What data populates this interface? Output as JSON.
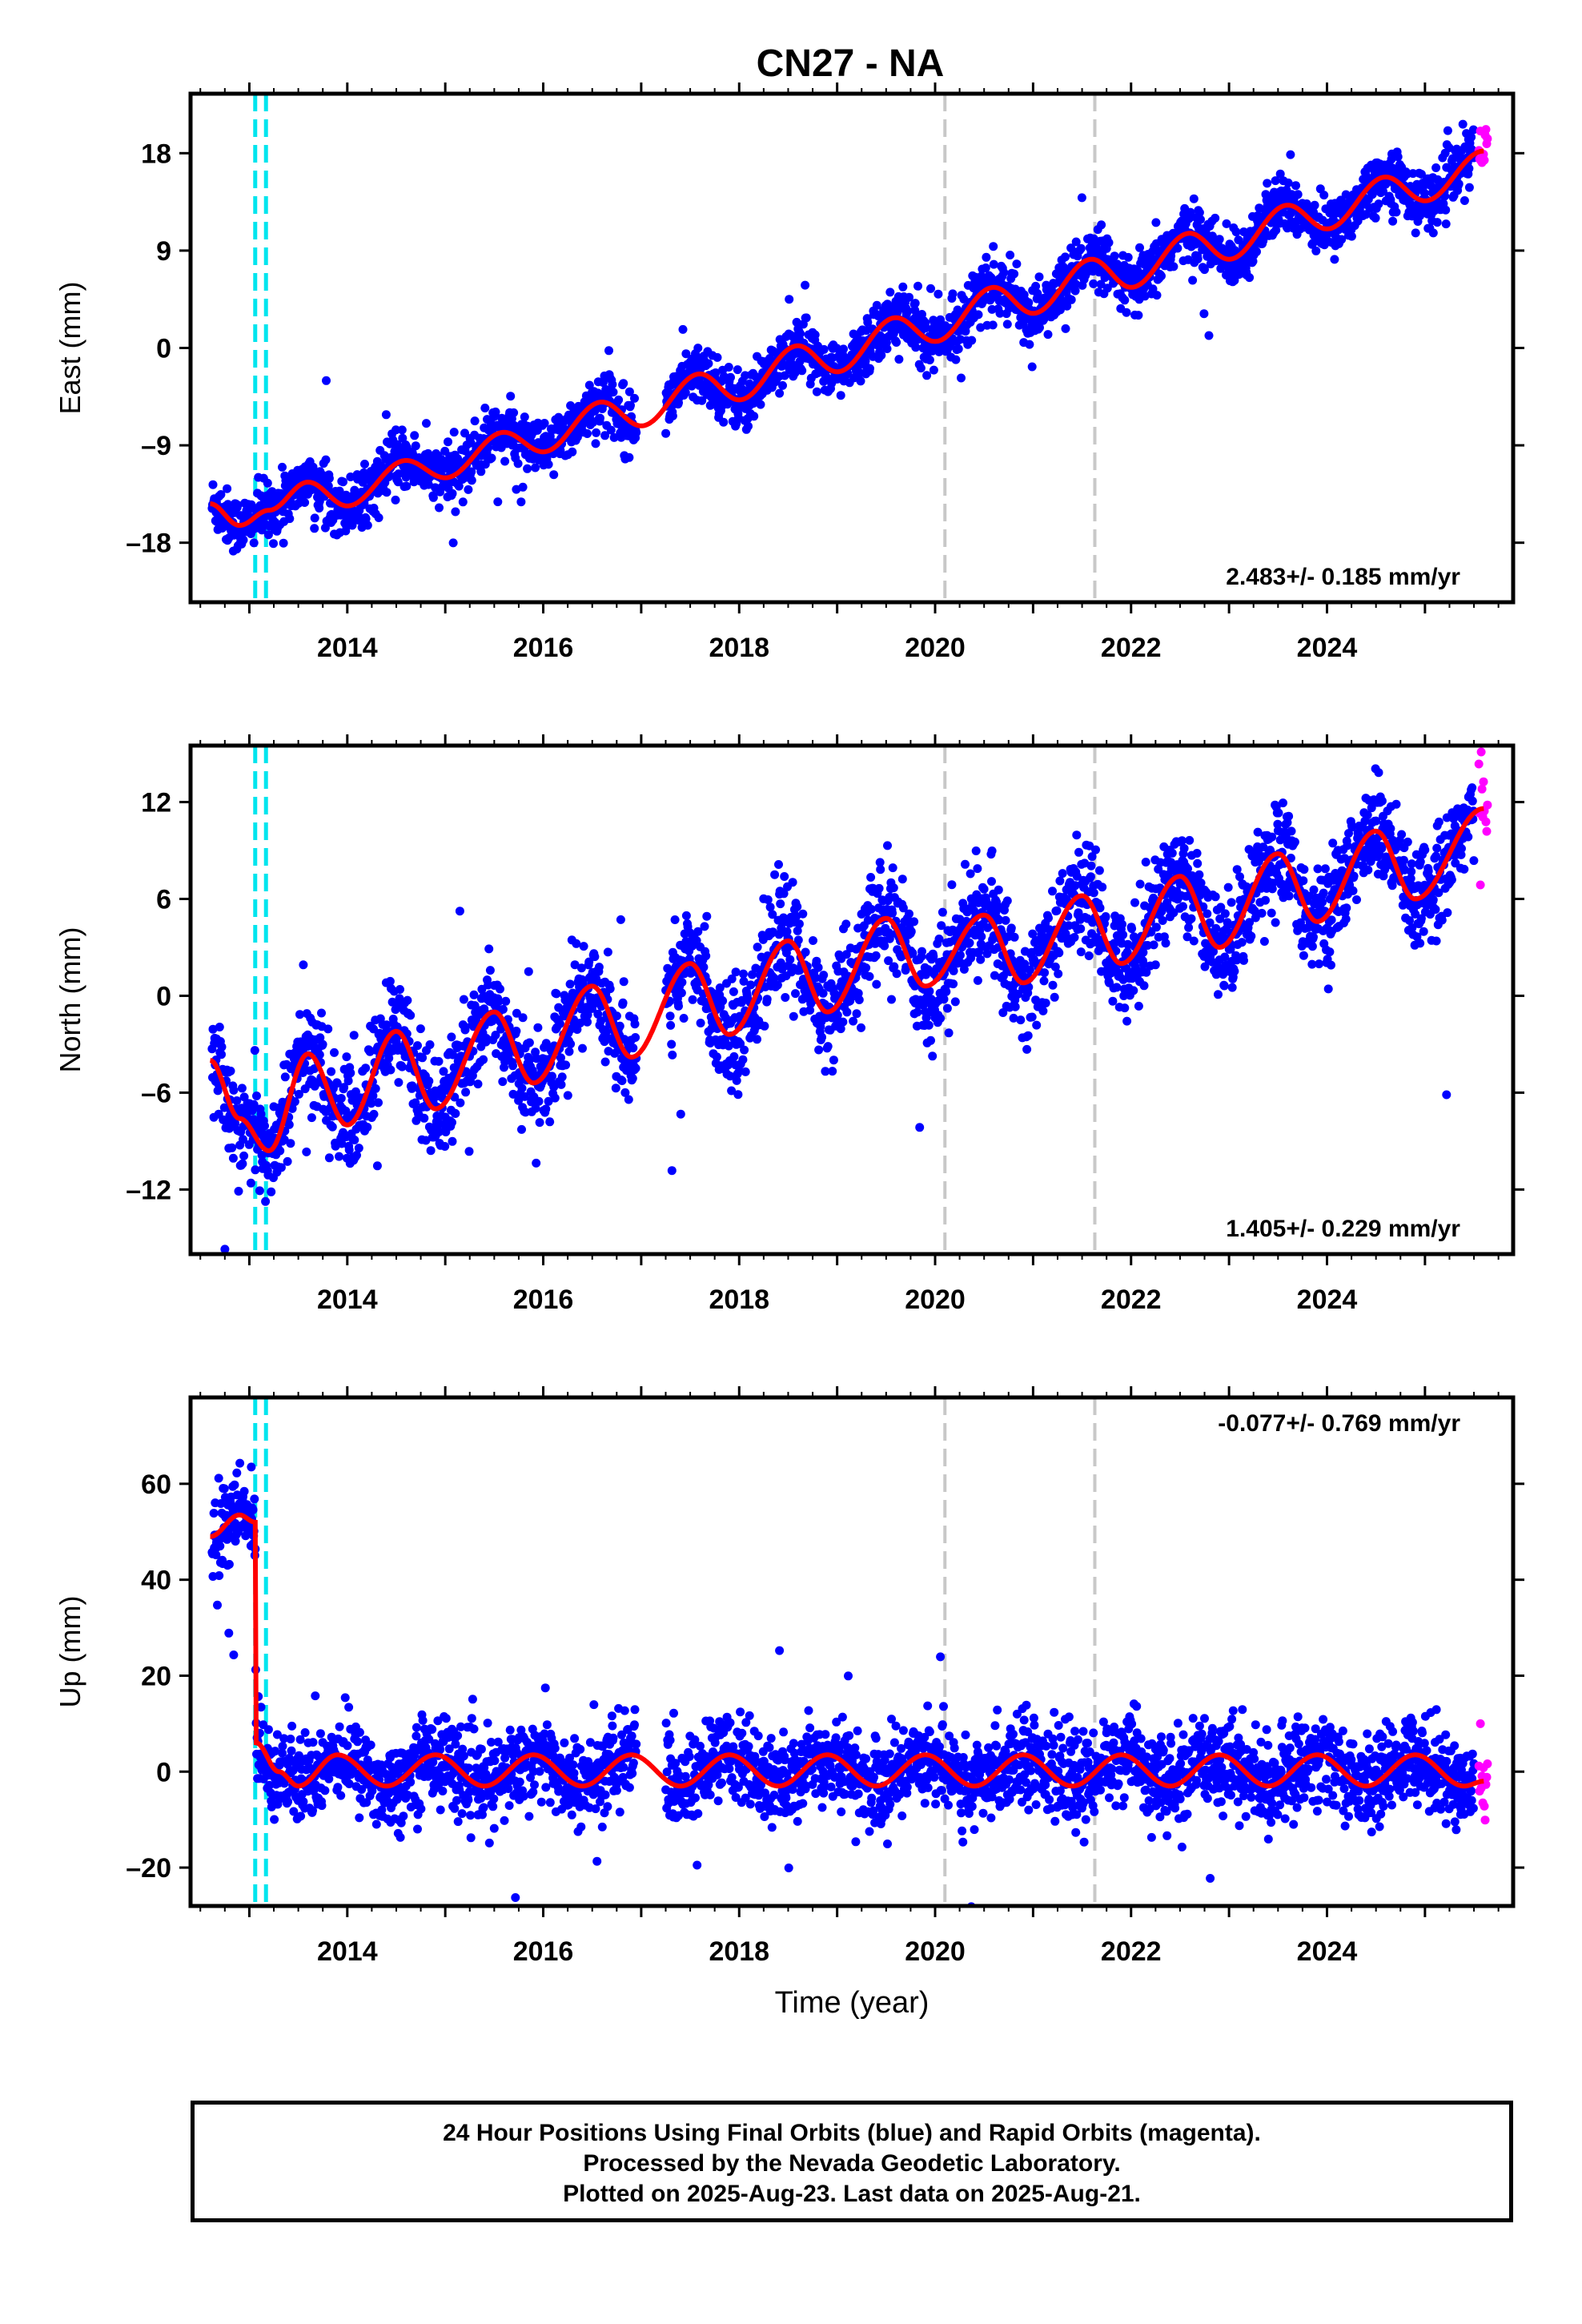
{
  "title": "CN27 - NA",
  "colors": {
    "final_orbits": "#0000ff",
    "rapid_orbits": "#ff00ff",
    "model_fit": "#ff0000",
    "antenna_change": "#00e5ee",
    "event_marker": "#c8c8c8",
    "axes": "#000000"
  },
  "chart_data": [
    {
      "type": "scatter",
      "name": "east",
      "ylabel": "East (mm)",
      "xlabel": "",
      "xlim": [
        2012.4,
        2025.9
      ],
      "ylim": [
        -23.5,
        23.5
      ],
      "yticks": [
        -18,
        -9,
        0,
        9,
        18
      ],
      "xticks": [
        2014,
        2016,
        2018,
        2020,
        2022,
        2024
      ],
      "grid": false,
      "rate": "2.483+/- 0.185 mm/yr",
      "rate_position": "bottom-right",
      "antenna_changes": [
        2013.06,
        2013.17
      ],
      "events": [
        2020.1,
        2021.63
      ],
      "trend_slope": 2.483,
      "seasonal_amplitude": 1.5,
      "scatter": 1.3,
      "offset_at_start": 0,
      "fit": [
        [
          2012.6,
          -14.4
        ],
        [
          2012.9,
          -16.4
        ],
        [
          2013.2,
          -15.0
        ],
        [
          2013.6,
          -12.4
        ],
        [
          2014.0,
          -14.6
        ],
        [
          2014.6,
          -10.4
        ],
        [
          2015.0,
          -12.0
        ],
        [
          2015.6,
          -7.8
        ],
        [
          2016.0,
          -9.6
        ],
        [
          2016.6,
          -5.0
        ],
        [
          2017.0,
          -7.2
        ],
        [
          2017.6,
          -2.4
        ],
        [
          2018.0,
          -4.8
        ],
        [
          2018.6,
          0.2
        ],
        [
          2019.0,
          -2.2
        ],
        [
          2019.6,
          2.8
        ],
        [
          2020.0,
          0.6
        ],
        [
          2020.6,
          5.6
        ],
        [
          2021.0,
          3.2
        ],
        [
          2021.6,
          8.2
        ],
        [
          2022.0,
          5.6
        ],
        [
          2022.6,
          10.6
        ],
        [
          2023.0,
          8.2
        ],
        [
          2023.6,
          13.2
        ],
        [
          2024.0,
          11.0
        ],
        [
          2024.6,
          15.8
        ],
        [
          2025.0,
          13.6
        ],
        [
          2025.6,
          18.2
        ]
      ]
    },
    {
      "type": "scatter",
      "name": "north",
      "ylabel": "North (mm)",
      "xlabel": "",
      "xlim": [
        2012.4,
        2025.9
      ],
      "ylim": [
        -16,
        15.5
      ],
      "yticks": [
        -12,
        -6,
        0,
        6,
        12
      ],
      "xticks": [
        2014,
        2016,
        2018,
        2020,
        2022,
        2024
      ],
      "grid": false,
      "rate": "1.405+/- 0.229 mm/yr",
      "rate_position": "bottom-right",
      "antenna_changes": [
        2013.06,
        2013.17
      ],
      "events": [
        2020.1,
        2021.63
      ],
      "trend_slope": 1.405,
      "seasonal_amplitude": 3.0,
      "scatter": 1.6,
      "offset_at_start": 0,
      "fit": [
        [
          2012.6,
          -4.0
        ],
        [
          2012.9,
          -7.6
        ],
        [
          2013.2,
          -9.6
        ],
        [
          2013.6,
          -3.6
        ],
        [
          2014.0,
          -8.0
        ],
        [
          2014.5,
          -2.2
        ],
        [
          2014.9,
          -7.0
        ],
        [
          2015.5,
          -1.0
        ],
        [
          2015.9,
          -5.4
        ],
        [
          2016.5,
          0.6
        ],
        [
          2016.9,
          -3.8
        ],
        [
          2017.5,
          2.0
        ],
        [
          2017.9,
          -2.4
        ],
        [
          2018.5,
          3.4
        ],
        [
          2018.9,
          -1.0
        ],
        [
          2019.5,
          4.8
        ],
        [
          2019.9,
          0.6
        ],
        [
          2020.5,
          5.0
        ],
        [
          2020.9,
          0.8
        ],
        [
          2021.5,
          6.2
        ],
        [
          2021.9,
          2.0
        ],
        [
          2022.5,
          7.4
        ],
        [
          2022.9,
          3.0
        ],
        [
          2023.5,
          8.8
        ],
        [
          2023.9,
          4.6
        ],
        [
          2024.5,
          10.2
        ],
        [
          2024.9,
          6.0
        ],
        [
          2025.6,
          11.6
        ]
      ]
    },
    {
      "type": "scatter",
      "name": "up",
      "ylabel": "Up (mm)",
      "xlabel": "Time (year)",
      "xlim": [
        2012.4,
        2025.9
      ],
      "ylim": [
        -28,
        78
      ],
      "yticks": [
        -20,
        0,
        20,
        40,
        60
      ],
      "xticks": [
        2014,
        2016,
        2018,
        2020,
        2022,
        2024
      ],
      "grid": false,
      "rate": "-0.077+/- 0.769 mm/yr",
      "rate_position": "top-right",
      "antenna_changes": [
        2013.06,
        2013.17
      ],
      "events": [
        2020.1,
        2021.63
      ],
      "trend_slope": -0.077,
      "seasonal_amplitude": 3.5,
      "scatter": 4.5,
      "offset_at_start": 52,
      "fit": [
        [
          2012.6,
          49.0
        ],
        [
          2012.9,
          53.5
        ],
        [
          2013.06,
          52.0
        ],
        [
          2013.07,
          6.0
        ],
        [
          2013.3,
          0.0
        ],
        [
          2013.5,
          -3.0
        ],
        [
          2013.9,
          3.5
        ],
        [
          2014.4,
          -3.0
        ],
        [
          2014.9,
          3.5
        ],
        [
          2015.4,
          -3.0
        ],
        [
          2015.9,
          3.5
        ],
        [
          2016.4,
          -3.0
        ],
        [
          2016.9,
          3.5
        ],
        [
          2017.4,
          -3.0
        ],
        [
          2017.9,
          3.5
        ],
        [
          2018.4,
          -3.0
        ],
        [
          2018.9,
          3.5
        ],
        [
          2019.4,
          -3.0
        ],
        [
          2019.9,
          3.5
        ],
        [
          2020.4,
          -3.0
        ],
        [
          2020.9,
          3.5
        ],
        [
          2021.4,
          -3.0
        ],
        [
          2021.9,
          3.5
        ],
        [
          2022.4,
          -3.0
        ],
        [
          2022.9,
          3.5
        ],
        [
          2023.4,
          -3.0
        ],
        [
          2023.9,
          3.5
        ],
        [
          2024.4,
          -3.0
        ],
        [
          2024.9,
          3.5
        ],
        [
          2025.4,
          -3.0
        ],
        [
          2025.6,
          -2.0
        ]
      ]
    }
  ],
  "caption": {
    "line1": "24 Hour Positions Using Final Orbits (blue) and Rapid Orbits (magenta).",
    "line2": "Processed by the Nevada Geodetic Laboratory.",
    "line3": "Plotted on 2025-Aug-23. Last data on 2025-Aug-21."
  }
}
